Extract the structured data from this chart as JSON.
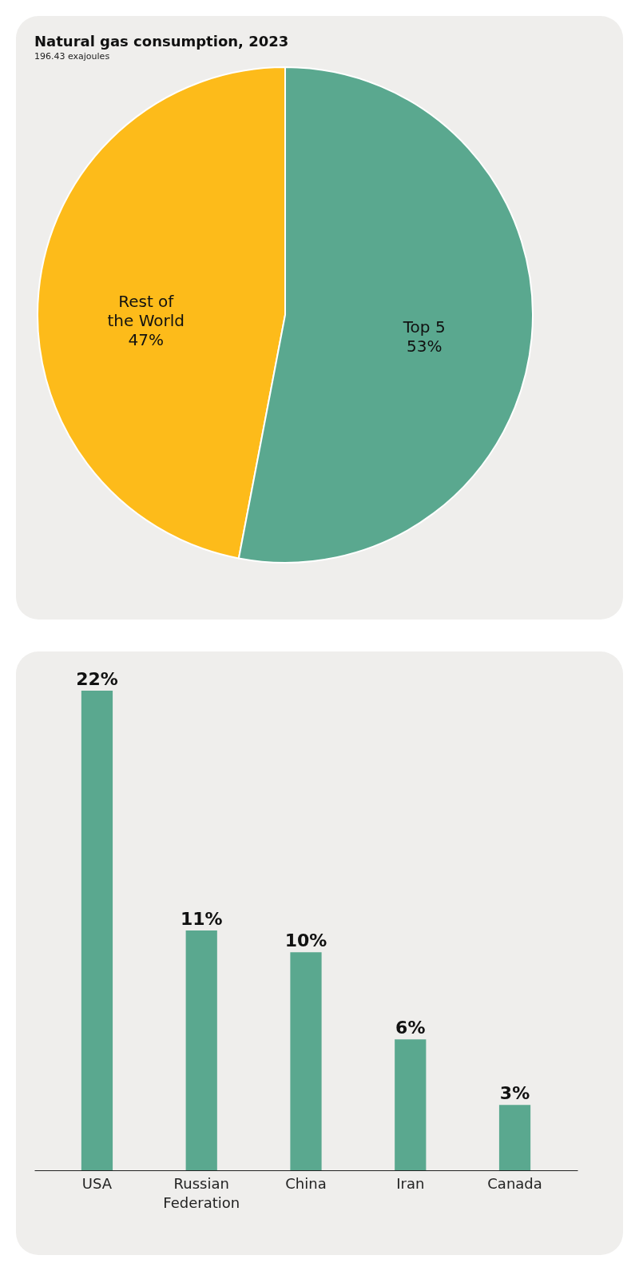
{
  "chart_data": [
    {
      "type": "pie",
      "title": "Natural gas consumption, 2023",
      "subtitle": "196.43 exajoules",
      "categories": [
        "Rest of the World",
        "Top 5"
      ],
      "values": [
        47,
        53
      ],
      "colors": [
        "#fdbb1a",
        "#5aa88f"
      ],
      "value_labels": [
        "47%",
        "53%"
      ]
    },
    {
      "type": "bar",
      "categories": [
        "USA",
        "Russian Federation",
        "China",
        "Iran",
        "Canada"
      ],
      "values": [
        22,
        11,
        10,
        6,
        3
      ],
      "color": "#5aa88f",
      "value_labels": [
        "22%",
        "11%",
        "10%",
        "6%",
        "3%"
      ]
    }
  ]
}
